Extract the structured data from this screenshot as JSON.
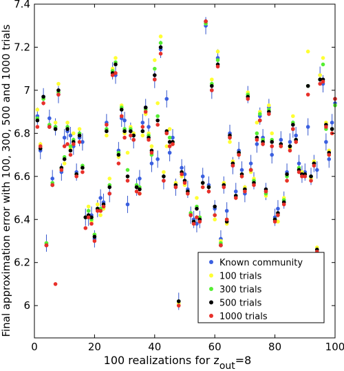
{
  "chart_data": {
    "type": "scatter",
    "xlabel": "100 realizations for z",
    "xlabel_sub": "out",
    "xlabel_suffix": "=8",
    "ylabel": "Final approximation error with 100, 300, 500 and 1000 trials",
    "xlim": [
      0,
      100
    ],
    "ylim": [
      5.85,
      7.4
    ],
    "xticks": [
      "0",
      "20",
      "40",
      "60",
      "80",
      "100"
    ],
    "yticks": [
      "6",
      "6.2",
      "6.4",
      "6.6",
      "6.8",
      "7",
      "7.2",
      "7.4"
    ],
    "legend_position": "bottom-right",
    "error_bar_color": "#3355cc",
    "error_bar_halfwidth": 0.04,
    "x": [
      1,
      2,
      3,
      4,
      5,
      6,
      7,
      8,
      9,
      10,
      11,
      12,
      13,
      14,
      15,
      16,
      17,
      18,
      19,
      20,
      21,
      22,
      23,
      24,
      25,
      26,
      27,
      28,
      29,
      30,
      31,
      32,
      33,
      34,
      35,
      36,
      37,
      38,
      39,
      40,
      41,
      42,
      43,
      44,
      45,
      46,
      47,
      48,
      49,
      50,
      51,
      52,
      53,
      54,
      55,
      56,
      57,
      58,
      59,
      60,
      61,
      62,
      63,
      64,
      65,
      66,
      67,
      68,
      69,
      70,
      71,
      72,
      73,
      74,
      75,
      76,
      77,
      78,
      79,
      80,
      81,
      82,
      83,
      84,
      85,
      86,
      87,
      88,
      89,
      90,
      91,
      92,
      93,
      94,
      95,
      96,
      97,
      98,
      99,
      100
    ],
    "series": [
      {
        "name": "Known community",
        "color": "#3a5fe0",
        "values": [
          6.88,
          6.72,
          6.97,
          6.29,
          6.87,
          6.59,
          6.83,
          6.98,
          6.62,
          6.78,
          6.81,
          6.79,
          6.74,
          6.62,
          6.78,
          6.76,
          6.41,
          6.41,
          6.42,
          6.31,
          6.45,
          6.5,
          6.48,
          6.85,
          6.52,
          7.09,
          7.07,
          6.72,
          6.87,
          6.86,
          6.47,
          6.81,
          6.77,
          6.55,
          6.59,
          6.85,
          6.92,
          6.83,
          6.66,
          7.05,
          6.68,
          7.19,
          6.58,
          6.96,
          6.71,
          6.78,
          6.55,
          6.02,
          6.64,
          6.61,
          6.54,
          6.42,
          6.4,
          6.38,
          6.4,
          6.6,
          7.3,
          6.56,
          7.0,
          6.45,
          7.15,
          6.31,
          6.56,
          6.44,
          6.8,
          6.65,
          6.53,
          6.72,
          6.63,
          6.52,
          6.98,
          6.66,
          6.58,
          6.75,
          6.88,
          6.78,
          6.53,
          6.92,
          6.7,
          6.41,
          6.45,
          6.77,
          6.49,
          6.62,
          6.76,
          6.82,
          6.79,
          6.66,
          6.61,
          6.62,
          6.83,
          6.6,
          6.66,
          6.63,
          7.07,
          7.03,
          6.76,
          6.68,
          6.85,
          6.94
        ]
      },
      {
        "name": "100 trials",
        "color": "#ffff33",
        "values": [
          6.91,
          6.75,
          6.96,
          6.29,
          6.84,
          6.56,
          6.85,
          7.03,
          6.63,
          6.66,
          6.85,
          6.73,
          6.8,
          6.61,
          6.82,
          6.64,
          6.41,
          6.46,
          6.39,
          6.33,
          6.47,
          6.42,
          6.45,
          6.79,
          6.59,
          7.1,
          7.15,
          6.69,
          6.93,
          6.8,
          6.71,
          6.83,
          6.8,
          6.55,
          6.52,
          6.79,
          6.89,
          6.8,
          6.74,
          7.14,
          6.94,
          7.25,
          6.62,
          6.74,
          6.82,
          6.75,
          6.57,
          6.01,
          6.6,
          6.56,
          6.52,
          6.43,
          6.38,
          6.5,
          6.41,
          6.55,
          7.31,
          6.55,
          7.05,
          6.4,
          7.18,
          6.3,
          6.57,
          6.38,
          6.76,
          6.67,
          6.5,
          6.7,
          6.6,
          6.55,
          6.99,
          6.62,
          6.59,
          6.85,
          6.9,
          6.77,
          6.51,
          6.93,
          6.8,
          6.4,
          6.39,
          6.74,
          6.5,
          6.58,
          6.73,
          6.88,
          6.76,
          6.63,
          6.62,
          6.6,
          7.18,
          6.59,
          6.67,
          6.27,
          7.07,
          7.15,
          6.85,
          6.72,
          6.8,
          6.93
        ]
      },
      {
        "name": "300 trials",
        "color": "#55ee33",
        "values": [
          6.87,
          6.74,
          6.96,
          6.29,
          6.84,
          6.57,
          6.83,
          6.99,
          6.64,
          6.69,
          6.83,
          6.74,
          6.77,
          6.61,
          6.8,
          6.65,
          6.41,
          6.44,
          6.4,
          6.33,
          6.45,
          6.45,
          6.46,
          6.82,
          6.56,
          7.09,
          7.13,
          6.71,
          6.92,
          6.82,
          6.63,
          6.82,
          6.79,
          6.56,
          6.55,
          6.81,
          6.91,
          6.79,
          6.7,
          7.1,
          6.88,
          7.22,
          6.6,
          6.8,
          6.78,
          6.76,
          6.56,
          6.02,
          6.62,
          6.58,
          6.53,
          6.43,
          6.39,
          6.46,
          6.41,
          6.57,
          7.31,
          6.55,
          7.03,
          6.42,
          7.14,
          6.29,
          6.56,
          6.4,
          6.78,
          6.66,
          6.51,
          6.71,
          6.61,
          6.54,
          6.98,
          6.63,
          6.58,
          6.8,
          6.89,
          6.77,
          6.52,
          6.91,
          6.77,
          6.4,
          6.42,
          6.75,
          6.49,
          6.6,
          6.74,
          6.85,
          6.77,
          6.64,
          6.61,
          6.61,
          7.02,
          6.6,
          6.66,
          6.26,
          7.05,
          7.12,
          6.82,
          6.7,
          6.82,
          6.93
        ]
      },
      {
        "name": "500 trials",
        "color": "#000000",
        "values": [
          6.86,
          6.73,
          6.97,
          6.28,
          6.83,
          6.56,
          6.82,
          7.0,
          6.64,
          6.68,
          6.82,
          6.72,
          6.76,
          6.61,
          6.79,
          6.64,
          6.41,
          6.42,
          6.41,
          6.32,
          6.45,
          6.44,
          6.47,
          6.81,
          6.55,
          7.08,
          7.12,
          6.7,
          6.91,
          6.81,
          6.6,
          6.81,
          6.79,
          6.55,
          6.54,
          6.81,
          6.92,
          6.78,
          6.72,
          7.07,
          6.86,
          7.2,
          6.6,
          6.81,
          6.76,
          6.76,
          6.56,
          6.02,
          6.62,
          6.58,
          6.53,
          6.42,
          6.39,
          6.45,
          6.4,
          6.57,
          7.32,
          6.55,
          7.02,
          6.46,
          7.12,
          6.28,
          6.56,
          6.39,
          6.79,
          6.66,
          6.51,
          6.71,
          6.61,
          6.54,
          6.97,
          6.63,
          6.57,
          6.78,
          6.86,
          6.76,
          6.54,
          6.9,
          6.76,
          6.4,
          6.43,
          6.75,
          6.48,
          6.61,
          6.74,
          6.84,
          6.77,
          6.63,
          6.61,
          6.61,
          7.02,
          6.6,
          6.66,
          6.26,
          7.05,
          7.05,
          6.84,
          6.71,
          6.82,
          6.96
        ]
      },
      {
        "name": "1000 trials",
        "color": "#e8302a",
        "values": [
          6.83,
          6.74,
          6.94,
          6.28,
          6.83,
          6.56,
          6.1,
          6.98,
          6.63,
          6.74,
          6.75,
          6.7,
          6.75,
          6.6,
          6.76,
          6.62,
          6.36,
          6.41,
          6.38,
          6.3,
          6.44,
          6.44,
          6.46,
          6.84,
          6.52,
          7.07,
          7.08,
          6.66,
          6.88,
          6.78,
          6.58,
          6.79,
          6.77,
          6.53,
          6.52,
          6.83,
          6.9,
          6.77,
          6.71,
          7.05,
          6.84,
          7.17,
          6.58,
          6.8,
          6.74,
          6.75,
          6.55,
          6.0,
          6.61,
          6.57,
          6.52,
          6.42,
          6.38,
          6.41,
          6.39,
          6.55,
          7.32,
          6.53,
          7.0,
          6.42,
          7.11,
          6.28,
          6.55,
          6.4,
          6.78,
          6.65,
          6.5,
          6.7,
          6.6,
          6.53,
          6.96,
          6.63,
          6.56,
          6.77,
          6.86,
          6.75,
          6.53,
          6.89,
          6.74,
          6.39,
          6.42,
          6.74,
          6.47,
          6.58,
          6.72,
          6.82,
          6.76,
          6.62,
          6.6,
          6.6,
          6.98,
          6.58,
          6.65,
          6.25,
          7.03,
          7.04,
          6.83,
          6.7,
          6.8,
          6.96
        ]
      }
    ]
  }
}
